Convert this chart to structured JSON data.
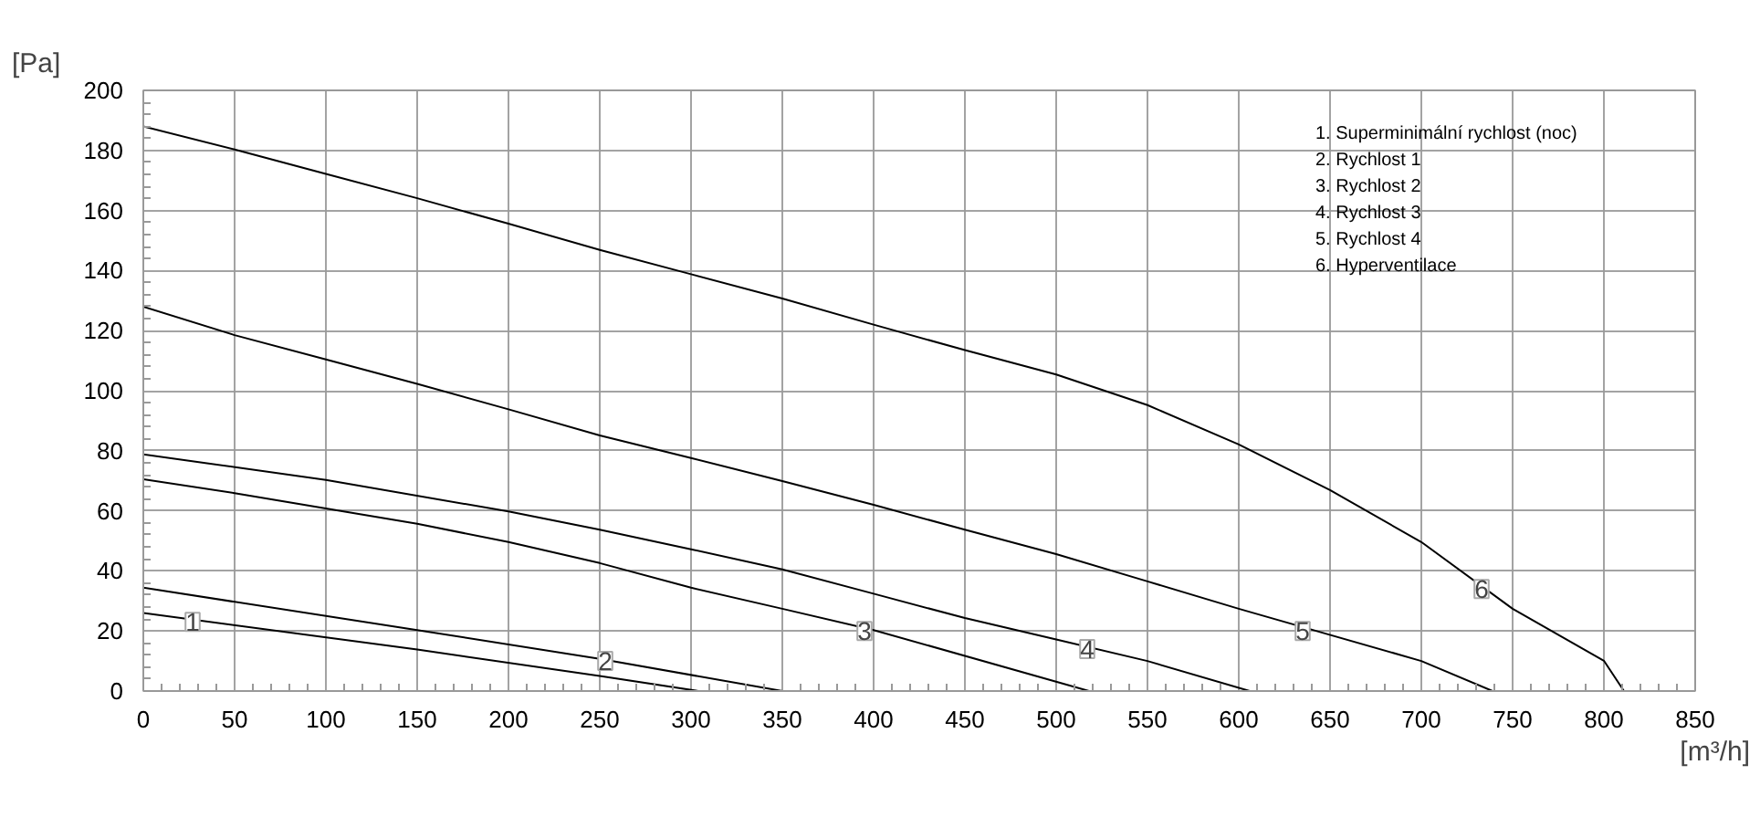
{
  "chart_data": {
    "type": "line",
    "xlabel": "[m³/h]",
    "ylabel": "[Pa]",
    "xlim": [
      0,
      850
    ],
    "ylim": [
      0,
      200
    ],
    "xticks": [
      0,
      50,
      100,
      150,
      200,
      250,
      300,
      350,
      400,
      450,
      500,
      550,
      600,
      650,
      700,
      750,
      800,
      850
    ],
    "yticks": [
      0,
      20,
      40,
      60,
      80,
      100,
      120,
      140,
      160,
      180,
      200
    ],
    "grid": true,
    "marker": "none",
    "line_style": "solid",
    "series": [
      {
        "color": "#000000",
        "x": [
          0,
          150,
          250,
          304
        ],
        "values": [
          26,
          13.8,
          5,
          0
        ]
      },
      {
        "color": "#000000",
        "x": [
          0,
          150,
          250,
          350
        ],
        "values": [
          34.4,
          20.3,
          10.7,
          0
        ]
      },
      {
        "color": "#000000",
        "x": [
          0,
          50,
          100,
          150,
          200,
          250,
          300,
          350,
          400,
          518
        ],
        "values": [
          70.5,
          65.9,
          60.8,
          55.7,
          49.6,
          42.6,
          34.4,
          27.4,
          20.3,
          0
        ]
      },
      {
        "color": "#000000",
        "x": [
          0,
          100,
          200,
          250,
          300,
          350,
          400,
          450,
          500,
          550,
          606
        ],
        "values": [
          78.8,
          70.3,
          59.8,
          53.7,
          47.2,
          40.5,
          32.4,
          24.3,
          17.2,
          10,
          0
        ]
      },
      {
        "color": "#000000",
        "x": [
          0,
          50,
          100,
          150,
          200,
          250,
          300,
          350,
          400,
          450,
          500,
          550,
          600,
          700,
          739
        ],
        "values": [
          128,
          118.5,
          110.4,
          102.3,
          93.8,
          85.1,
          77.6,
          69.9,
          62,
          53.7,
          45.6,
          36.5,
          27.4,
          10,
          0
        ]
      },
      {
        "color": "#000000",
        "x": [
          0,
          50,
          100,
          150,
          200,
          250,
          300,
          350,
          400,
          450,
          500,
          550,
          600,
          650,
          700,
          750,
          800,
          811
        ],
        "values": [
          188,
          180.3,
          172.2,
          164.1,
          155.6,
          146.9,
          138.8,
          130.7,
          122,
          113.5,
          105.4,
          95.2,
          82.1,
          66.9,
          49.6,
          27.4,
          10.1,
          0
        ]
      }
    ],
    "annotations": [
      {
        "text": "1",
        "x": 27,
        "y": 23
      },
      {
        "text": "2",
        "x": 253,
        "y": 10
      },
      {
        "text": "3",
        "x": 395,
        "y": 20
      },
      {
        "text": "4",
        "x": 517,
        "y": 14
      },
      {
        "text": "5",
        "x": 635,
        "y": 20
      },
      {
        "text": "6",
        "x": 733,
        "y": 34
      },
      "1. Superminimální rychlost (noc)",
      "2. Rychlost 1",
      "3. Rychlost 2",
      "4. Rychlost 3",
      "5. Rychlost 4",
      "6. Hyperventilace"
    ]
  }
}
